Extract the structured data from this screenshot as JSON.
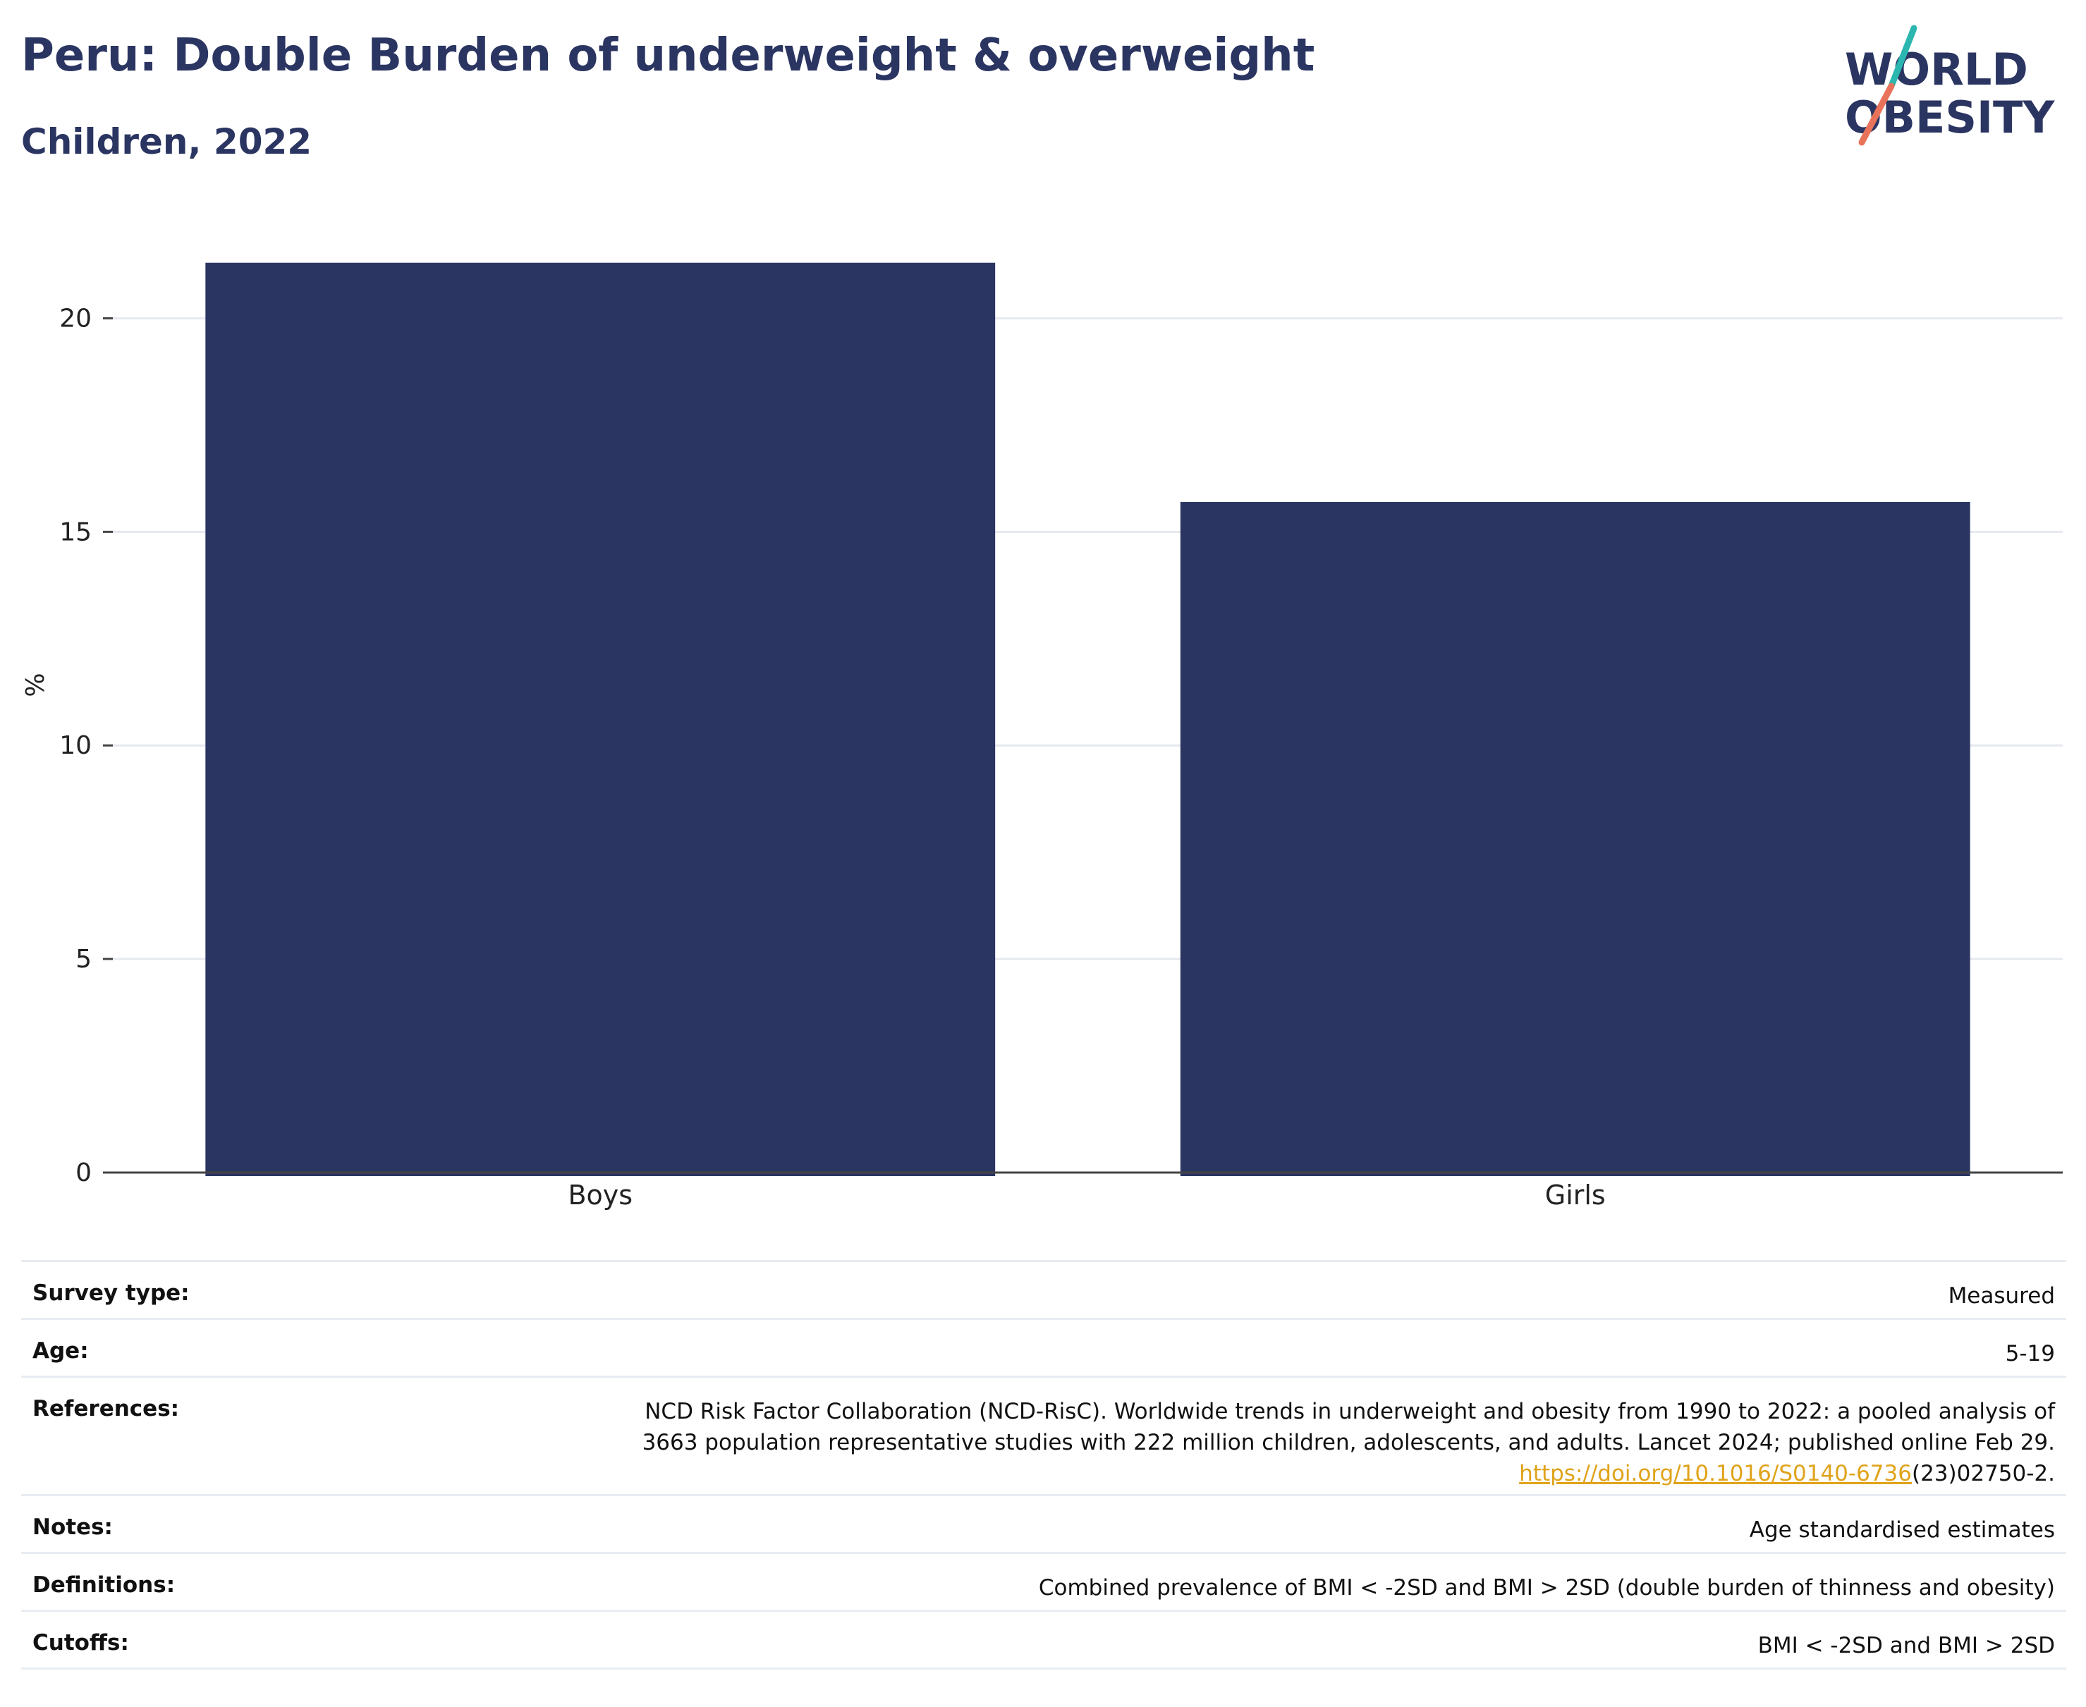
{
  "header": {
    "title": "Peru: Double Burden of underweight & overweight",
    "subtitle": "Children, 2022"
  },
  "logo": {
    "line1": "WORLD",
    "line2": "OBESITY",
    "text_color": "#2b3562",
    "slash_colors": [
      "#2bb6b0",
      "#e8735a"
    ]
  },
  "chart_data": {
    "type": "bar",
    "categories": [
      "Boys",
      "Girls"
    ],
    "values": [
      21.3,
      15.7
    ],
    "ylabel": "%",
    "xlabel": "",
    "ylim": [
      0,
      22.5
    ],
    "yticks": [
      0,
      5,
      10,
      15,
      20
    ],
    "grid": true,
    "bar_color": "#2b3562"
  },
  "info": {
    "survey_type": {
      "label": "Survey type:",
      "value": "Measured"
    },
    "age": {
      "label": "Age:",
      "value": "5-19"
    },
    "references": {
      "label": "References:",
      "line1": "NCD Risk Factor Collaboration (NCD-RisC). Worldwide trends in underweight and obesity from 1990 to 2022: a pooled analysis of",
      "line2": "3663 population representative studies with 222 million children, adolescents, and adults. Lancet 2024; published online Feb 29.",
      "link": "https://doi.org/10.1016/S0140-6736",
      "link_suffix": "(23)02750-2."
    },
    "notes": {
      "label": "Notes:",
      "value": "Age standardised estimates"
    },
    "definitions": {
      "label": "Definitions:",
      "value": "Combined prevalence of BMI < -2SD and BMI > 2SD (double burden of thinness and obesity)"
    },
    "cutoffs": {
      "label": "Cutoffs:",
      "value": "BMI < -2SD and BMI > 2SD"
    }
  }
}
